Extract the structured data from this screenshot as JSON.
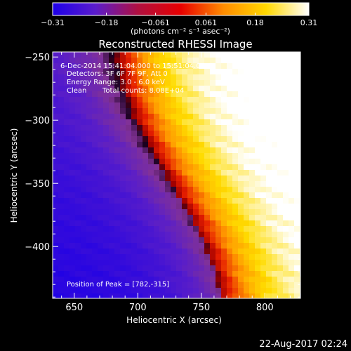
{
  "chart_data": {
    "type": "heatmap",
    "title": "Reconstructed RHESSI Image",
    "xlabel": "Heliocentric X (arcsec)",
    "ylabel": "Heliocentric Y (arcsec)",
    "xlim": [
      633,
      828
    ],
    "ylim": [
      -441,
      -246
    ],
    "x_ticks": [
      650,
      700,
      750,
      800
    ],
    "x_tick_labels": [
      "650",
      "700",
      "750",
      "800"
    ],
    "y_ticks": [
      -250,
      -300,
      -350,
      -400
    ],
    "y_tick_labels": [
      "−250",
      "−300",
      "−350",
      "−400"
    ],
    "colorbar": {
      "range": [
        -0.31,
        0.31
      ],
      "ticks": [
        -0.31,
        -0.18,
        -0.061,
        0.061,
        0.18,
        0.31
      ],
      "tick_labels": [
        "−0.31",
        "−0.18",
        "−0.061",
        "0.061",
        "0.18",
        "0.31"
      ],
      "colors": [
        "#1e00e8",
        "#5a1ccc",
        "#b01040",
        "#e80000",
        "#ff8c00",
        "#ffd800",
        "#ffffff"
      ],
      "unit_label": "(photons cm⁻² s⁻¹ asec⁻²)"
    },
    "peak": {
      "x": 782,
      "y": -315
    }
  },
  "annotations": {
    "lines": [
      "6-Dec-2014 15:41:04.000 to 15:51:04.000",
      "Detectors: 3F 6F 7F 9F, Att 0",
      "Energy Range: 3.0 - 6.0 keV"
    ],
    "clean": "Clean",
    "total_counts": "Total counts: 8.08E+04",
    "peak_label": "Position of Peak = [782,-315]"
  },
  "footer_date": "22-Aug-2017 02:24"
}
